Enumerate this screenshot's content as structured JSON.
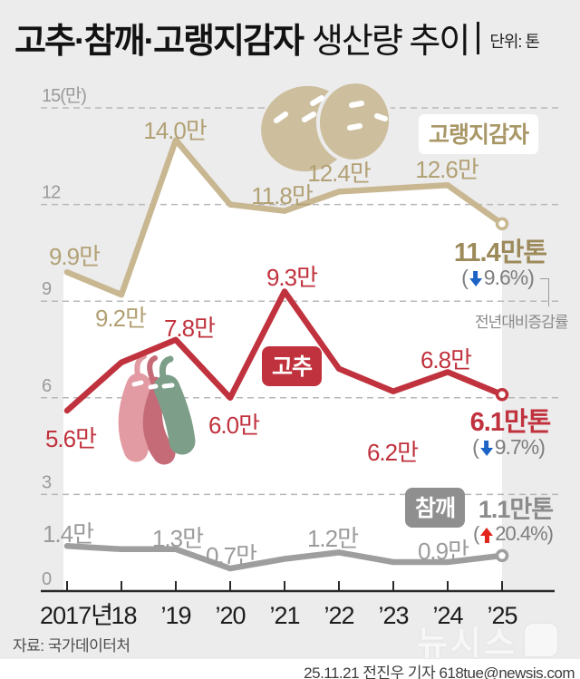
{
  "header": {
    "title_bold": "고추·참깨·고랭지감자",
    "title_rest": "생산량 추이",
    "unit_label": "단위: 톤"
  },
  "chart_data": {
    "type": "line",
    "title": "고추·참깨·고랭지감자 생산량 추이",
    "unit": "만 톤 (y축 단위: 만)",
    "categories": [
      "2017년",
      "’18",
      "’19",
      "’20",
      "’21",
      "’22",
      "’23",
      "’24",
      "’25"
    ],
    "y_axis": {
      "range": [
        0,
        15
      ],
      "grid": "dashed",
      "ticks": [
        {
          "value": 15,
          "label": "15(만)"
        },
        {
          "value": 12,
          "label": "12"
        },
        {
          "value": 9,
          "label": "9"
        },
        {
          "value": 6,
          "label": "6"
        },
        {
          "value": 3,
          "label": "3"
        },
        {
          "value": 0,
          "label": "0"
        }
      ]
    },
    "series": [
      {
        "name": "고랭지감자",
        "color": "#c8b791",
        "values": [
          9.9,
          9.2,
          14.0,
          12.0,
          11.8,
          12.4,
          12.5,
          12.6,
          11.4
        ],
        "final_value": "11.4만톤",
        "final_change": "-9.6%"
      },
      {
        "name": "고추",
        "color": "#c0323d",
        "values": [
          5.6,
          7.1,
          7.8,
          6.0,
          9.3,
          6.9,
          6.2,
          6.8,
          6.1
        ],
        "final_value": "6.1만톤",
        "final_change": "-9.7%"
      },
      {
        "name": "참깨",
        "color": "#9e9e9e",
        "values": [
          1.4,
          1.3,
          1.3,
          0.7,
          1.0,
          1.2,
          0.9,
          0.9,
          1.1
        ],
        "final_value": "1.1만톤",
        "final_change": "+20.4%"
      }
    ]
  },
  "labels": {
    "potato_2017": "9.9만",
    "potato_2018": "9.2만",
    "potato_2019": "14.0만",
    "potato_2021": "11.8만",
    "potato_2022": "12.4만",
    "potato_2024": "12.6만",
    "pepper_2017": "5.6만",
    "pepper_2019": "7.8만",
    "pepper_2020": "6.0만",
    "pepper_2021": "9.3만",
    "pepper_2023": "6.2만",
    "pepper_2024": "6.8만",
    "sesame_2017": "1.4만",
    "sesame_2019": "1.3만",
    "sesame_2020": "0.7만",
    "sesame_2022": "1.2만",
    "sesame_2024": "0.9만"
  },
  "series_boxes": {
    "potato": "고랭지감자",
    "pepper": "고추",
    "sesame": "참깨"
  },
  "finals": {
    "potato_value": "11.4만톤",
    "potato_open": "(",
    "potato_rest": "9.6%)",
    "pepper_value": "6.1만톤",
    "pepper_open": "(",
    "pepper_rest": "9.7%)",
    "sesame_value": "1.1만톤",
    "sesame_open": "(",
    "sesame_rest": "20.4%)",
    "yoy_note": "전년대비증감률"
  },
  "footer": {
    "source": "자료: 국가데이터처",
    "logo": "뉴시스",
    "byline": "25.11.21 전진우 기자 618tue@newsis.com"
  }
}
